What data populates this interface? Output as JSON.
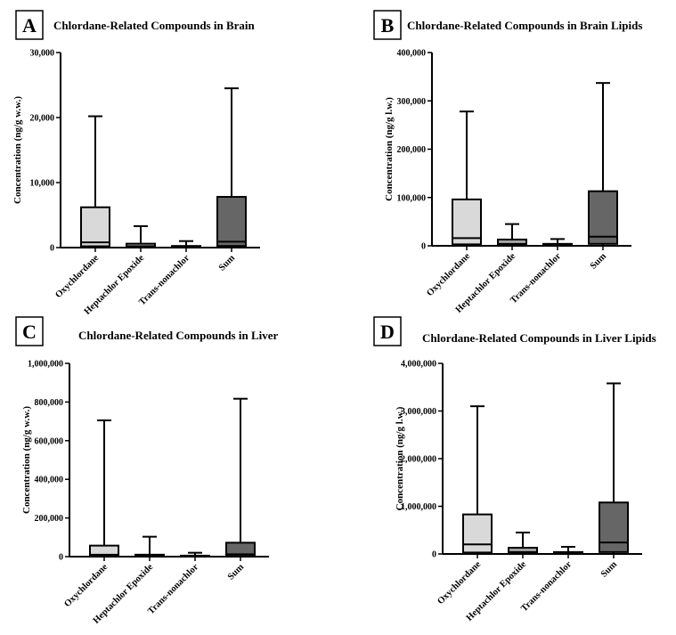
{
  "chart_data": [
    {
      "type": "box",
      "panel": "A",
      "title": "Chlordane-Related Compounds in Brain",
      "ylabel": "Concentration (ng/g w.w.)",
      "categories": [
        "Oxychlordane",
        "Heptachlor Epoxide",
        "Trans-nonachlor",
        "Sum"
      ],
      "colors": [
        "#d9d9d9",
        "#a6a6a6",
        "#8c8c8c",
        "#666666"
      ],
      "min": [
        0,
        0,
        0,
        0
      ],
      "q1": [
        200,
        50,
        30,
        250
      ],
      "median": [
        800,
        200,
        100,
        900
      ],
      "q3": [
        6200,
        600,
        250,
        7800
      ],
      "max": [
        20200,
        3300,
        1000,
        24500
      ],
      "ylim": [
        0,
        30000
      ],
      "yticks": [
        0,
        {
          "value": 10000,
          "label": "10,000"
        },
        {
          "value": 20000,
          "label": "20,000"
        },
        {
          "value": 30000,
          "label": "30,000"
        }
      ]
    },
    {
      "type": "box",
      "panel": "B",
      "title": "Chlordane-Related Compounds in Brain Lipids",
      "ylabel": "Concentration (ng/g l.w.)",
      "categories": [
        "Oxychlordane",
        "Heptachlor Epoxide",
        "Trans-nonachlor",
        "Sum"
      ],
      "colors": [
        "#d9d9d9",
        "#a6a6a6",
        "#8c8c8c",
        "#666666"
      ],
      "min": [
        0,
        0,
        0,
        0
      ],
      "q1": [
        3000,
        1000,
        500,
        4000
      ],
      "median": [
        16000,
        4000,
        1500,
        19000
      ],
      "q3": [
        96000,
        13000,
        4000,
        113000
      ],
      "max": [
        278000,
        45000,
        14000,
        337000
      ],
      "ylim": [
        0,
        400000
      ],
      "yticks": [
        0,
        {
          "value": 100000,
          "label": "100,000"
        },
        {
          "value": 200000,
          "label": "200,000"
        },
        {
          "value": 300000,
          "label": "300,000"
        },
        {
          "value": 400000,
          "label": "400,000"
        }
      ]
    },
    {
      "type": "box",
      "panel": "C",
      "title": "Chlordane-Related Compounds in Liver",
      "ylabel": "Concentration (ng/g w.w.)",
      "categories": [
        "Oxychlordane",
        "Heptachlor Epoxide",
        "Trans-nonachlor",
        "Sum"
      ],
      "colors": [
        "#d9d9d9",
        "#a6a6a6",
        "#8c8c8c",
        "#666666"
      ],
      "min": [
        0,
        0,
        0,
        0
      ],
      "q1": [
        2000,
        800,
        400,
        2500
      ],
      "median": [
        10000,
        3000,
        1500,
        12000
      ],
      "q3": [
        57000,
        10000,
        5000,
        72000
      ],
      "max": [
        705000,
        103000,
        20000,
        817000
      ],
      "ylim": [
        0,
        1000000
      ],
      "yticks": [
        0,
        {
          "value": 200000,
          "label": "200,000"
        },
        {
          "value": 400000,
          "label": "400,000"
        },
        {
          "value": 600000,
          "label": "600,000"
        },
        {
          "value": 800000,
          "label": "800,000"
        },
        {
          "value": 1000000,
          "label": "1,000,000"
        }
      ]
    },
    {
      "type": "box",
      "panel": "D",
      "title": "Chlordane-Related Compounds in Liver Lipids",
      "ylabel": "Concentration (ng/g l.w.)",
      "categories": [
        "Oxychlordane",
        "Heptachlor Epoxide",
        "Trans-nonachlor",
        "Sum"
      ],
      "colors": [
        "#d9d9d9",
        "#a6a6a6",
        "#8c8c8c",
        "#666666"
      ],
      "min": [
        0,
        0,
        0,
        0
      ],
      "q1": [
        30000,
        10000,
        5000,
        40000
      ],
      "median": [
        200000,
        40000,
        15000,
        240000
      ],
      "q3": [
        830000,
        130000,
        40000,
        1080000
      ],
      "max": [
        3100000,
        450000,
        150000,
        3580000
      ],
      "ylim": [
        0,
        4000000
      ],
      "yticks": [
        0,
        {
          "value": 1000000,
          "label": "1,000,000"
        },
        {
          "value": 2000000,
          "label": "2,000,000"
        },
        {
          "value": 3000000,
          "label": "3,000,000"
        },
        {
          "value": 4000000,
          "label": "4,000,000"
        }
      ]
    }
  ]
}
